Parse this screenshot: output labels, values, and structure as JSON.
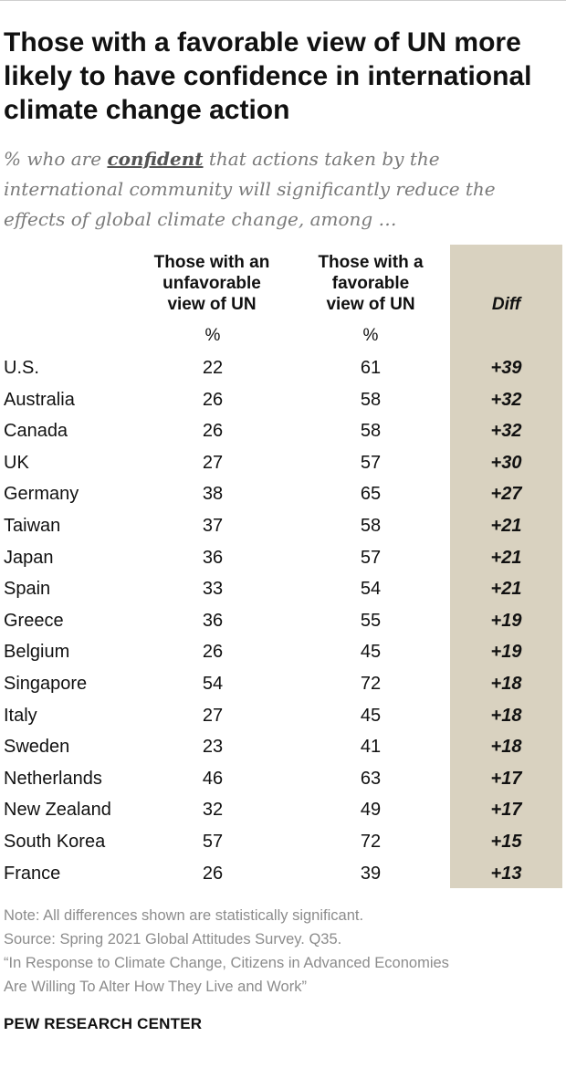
{
  "title": "Those with a favorable view of UN more likely to have confidence in international climate change action",
  "subtitle": {
    "prefix": "% who are ",
    "keyword": "confident",
    "suffix": " that actions taken by the international community will significantly reduce the effects of global climate change, among …"
  },
  "columns": {
    "unfavorable": "Those with an\nunfavorable\nview of UN",
    "favorable": "Those with a\nfavorable\nview of UN",
    "diff": "Diff",
    "unit": "%"
  },
  "chart_data": {
    "type": "table",
    "columns": [
      "Those with an unfavorable view of UN",
      "Those with a favorable view of UN",
      "Diff"
    ],
    "rows": [
      {
        "country": "U.S.",
        "unfavorable": "22",
        "favorable": "61",
        "diff": "+39"
      },
      {
        "country": "Australia",
        "unfavorable": "26",
        "favorable": "58",
        "diff": "+32"
      },
      {
        "country": "Canada",
        "unfavorable": "26",
        "favorable": "58",
        "diff": "+32"
      },
      {
        "country": "UK",
        "unfavorable": "27",
        "favorable": "57",
        "diff": "+30"
      },
      {
        "country": "Germany",
        "unfavorable": "38",
        "favorable": "65",
        "diff": "+27"
      },
      {
        "country": "Taiwan",
        "unfavorable": "37",
        "favorable": "58",
        "diff": "+21"
      },
      {
        "country": "Japan",
        "unfavorable": "36",
        "favorable": "57",
        "diff": "+21"
      },
      {
        "country": "Spain",
        "unfavorable": "33",
        "favorable": "54",
        "diff": "+21"
      },
      {
        "country": "Greece",
        "unfavorable": "36",
        "favorable": "55",
        "diff": "+19"
      },
      {
        "country": "Belgium",
        "unfavorable": "26",
        "favorable": "45",
        "diff": "+19"
      },
      {
        "country": "Singapore",
        "unfavorable": "54",
        "favorable": "72",
        "diff": "+18"
      },
      {
        "country": "Italy",
        "unfavorable": "27",
        "favorable": "45",
        "diff": "+18"
      },
      {
        "country": "Sweden",
        "unfavorable": "23",
        "favorable": "41",
        "diff": "+18"
      },
      {
        "country": "Netherlands",
        "unfavorable": "46",
        "favorable": "63",
        "diff": "+17"
      },
      {
        "country": "New Zealand",
        "unfavorable": "32",
        "favorable": "49",
        "diff": "+17"
      },
      {
        "country": "South Korea",
        "unfavorable": "57",
        "favorable": "72",
        "diff": "+15"
      },
      {
        "country": "France",
        "unfavorable": "26",
        "favorable": "39",
        "diff": "+13"
      }
    ]
  },
  "notes": {
    "note": "Note: All differences shown are statistically significant.",
    "source": "Source: Spring 2021 Global Attitudes Survey. Q35.",
    "report_line1": "“In Response to Climate Change, Citizens in Advanced Economies",
    "report_line2": "Are Willing To Alter How They Live and Work”"
  },
  "brand": "PEW RESEARCH CENTER",
  "colors": {
    "diff_band": "#d9d2c0",
    "text": "#111111",
    "muted": "#8c8c8c"
  }
}
